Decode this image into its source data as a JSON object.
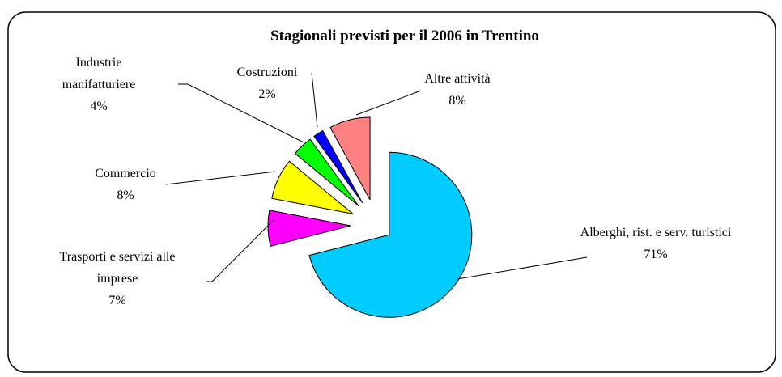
{
  "chart_data": {
    "type": "pie",
    "title": "Stagionali previsti per il 2006 in Trentino",
    "categories": [
      "Alberghi, rist. e serv. turistici",
      "Trasporti e servizi alle imprese",
      "Commercio",
      "Industrie manifatturiere",
      "Costruzioni",
      "Altre attività"
    ],
    "values": [
      71,
      7,
      8,
      4,
      2,
      8
    ],
    "value_labels": [
      "71%",
      "7%",
      "8%",
      "4%",
      "2%",
      "8%"
    ],
    "colors": [
      "#00ccff",
      "#ff00ff",
      "#ffff00",
      "#00ff00",
      "#0000ff",
      "#ff8080"
    ]
  }
}
